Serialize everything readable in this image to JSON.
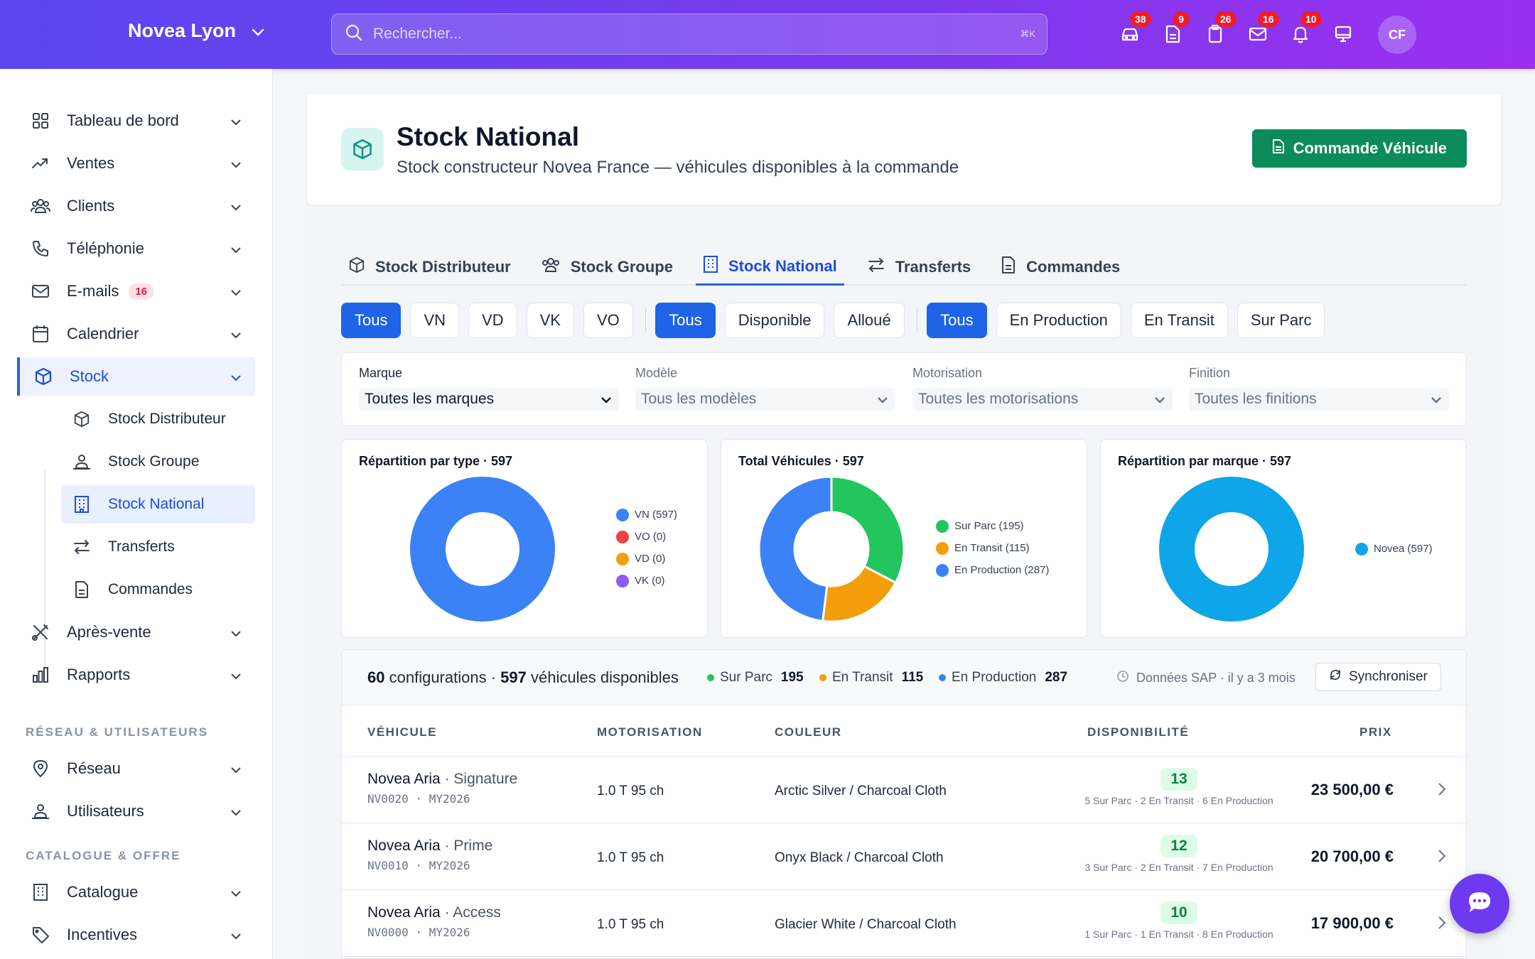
{
  "topbar": {
    "org_name": "Novea Lyon",
    "search_placeholder": "Rechercher...",
    "search_shortcut": "⌘K",
    "notifications": [
      {
        "icon": "car-icon",
        "count": "38"
      },
      {
        "icon": "document-icon",
        "count": "9"
      },
      {
        "icon": "clipboard-icon",
        "count": "26"
      },
      {
        "icon": "mail-icon",
        "count": "16"
      },
      {
        "icon": "bell-icon",
        "count": "10"
      },
      {
        "icon": "monitor-icon",
        "count": ""
      }
    ],
    "avatar_initials": "CF"
  },
  "sidebar": {
    "items": [
      {
        "label": "Tableau de bord",
        "icon": "grid-icon"
      },
      {
        "label": "Ventes",
        "icon": "trending-icon"
      },
      {
        "label": "Clients",
        "icon": "users-icon"
      },
      {
        "label": "Téléphonie",
        "icon": "phone-icon"
      },
      {
        "label": "E-mails",
        "icon": "mail-icon",
        "badge": "16"
      },
      {
        "label": "Calendrier",
        "icon": "calendar-icon"
      },
      {
        "label": "Stock",
        "icon": "box-icon"
      }
    ],
    "stock_sub": [
      {
        "label": "Stock Distributeur"
      },
      {
        "label": "Stock Groupe"
      },
      {
        "label": "Stock National"
      },
      {
        "label": "Transferts"
      },
      {
        "label": "Commandes"
      }
    ],
    "after_items": [
      {
        "label": "Après-vente"
      },
      {
        "label": "Rapports"
      }
    ],
    "section_network": "RÉSEAU & UTILISATEURS",
    "network_items": [
      {
        "label": "Réseau"
      },
      {
        "label": "Utilisateurs"
      }
    ],
    "section_catalog": "CATALOGUE & OFFRE",
    "catalog_items": [
      {
        "label": "Catalogue"
      },
      {
        "label": "Incentives"
      }
    ]
  },
  "header": {
    "title": "Stock National",
    "subtitle": "Stock constructeur Novea France — véhicules disponibles à la commande",
    "action_label": "Commande Véhicule"
  },
  "tabs": [
    {
      "label": "Stock Distributeur"
    },
    {
      "label": "Stock Groupe"
    },
    {
      "label": "Stock National",
      "active": true
    },
    {
      "label": "Transferts"
    },
    {
      "label": "Commandes"
    }
  ],
  "pills": {
    "type": [
      "Tous",
      "VN",
      "VD",
      "VK",
      "VO"
    ],
    "allocation": [
      "Tous",
      "Disponible",
      "Alloué"
    ],
    "status": [
      "Tous",
      "En Production",
      "En Transit",
      "Sur Parc"
    ]
  },
  "filters": [
    {
      "label": "Marque",
      "value": "Toutes les marques"
    },
    {
      "label": "Modèle",
      "value": "Tous les modèles"
    },
    {
      "label": "Motorisation",
      "value": "Toutes les motorisations"
    },
    {
      "label": "Finition",
      "value": "Toutes les finitions"
    }
  ],
  "chart_data": [
    {
      "type": "pie",
      "title": "Répartition par type · 597",
      "categories": [
        "VN (597)",
        "VO (0)",
        "VD (0)",
        "VK (0)"
      ],
      "values": [
        597,
        0,
        0,
        0
      ],
      "colors": [
        "#3b82f6",
        "#ef4444",
        "#f59e0b",
        "#8b5cf6"
      ],
      "legend": "right"
    },
    {
      "type": "pie",
      "title": "Total Véhicules · 597",
      "categories": [
        "Sur Parc (195)",
        "En Transit (115)",
        "En Production (287)"
      ],
      "values": [
        195,
        115,
        287
      ],
      "colors": [
        "#22c55e",
        "#f59e0b",
        "#3b82f6"
      ],
      "legend": "right"
    },
    {
      "type": "pie",
      "title": "Répartition par marque · 597",
      "categories": [
        "Novea (597)"
      ],
      "values": [
        597
      ],
      "colors": [
        "#0ea5e9"
      ],
      "legend": "right"
    }
  ],
  "summary": {
    "configurations": "60",
    "config_label": "configurations ·",
    "vehicles": "597",
    "vehicles_label": "véhicules disponibles",
    "stats": [
      {
        "label": "Sur Parc",
        "value": "195",
        "color": "#22c55e"
      },
      {
        "label": "En Transit",
        "value": "115",
        "color": "#f59e0b"
      },
      {
        "label": "En Production",
        "value": "287",
        "color": "#3b82f6"
      }
    ],
    "sap_label": "Données SAP · il y a 3 mois",
    "sync_label": "Synchroniser"
  },
  "table": {
    "headers": [
      "VÉHICULE",
      "MOTORISATION",
      "COULEUR",
      "DISPONIBILITÉ",
      "PRIX"
    ],
    "rows": [
      {
        "model": "Novea Aria",
        "trim": "· Signature",
        "code": "NV0020  ·  MY2026",
        "engine": "1.0 T 95 ch",
        "color": "Arctic Silver / Charcoal Cloth",
        "qty": "13",
        "detail": "5 Sur Parc · 2 En Transit · 6 En Production",
        "price": "23 500,00 €"
      },
      {
        "model": "Novea Aria",
        "trim": "· Prime",
        "code": "NV0010  ·  MY2026",
        "engine": "1.0 T 95 ch",
        "color": "Onyx Black / Charcoal Cloth",
        "qty": "12",
        "detail": "3 Sur Parc · 2 En Transit · 7 En Production",
        "price": "20 700,00 €"
      },
      {
        "model": "Novea Aria",
        "trim": "· Access",
        "code": "NV0000  ·  MY2026",
        "engine": "1.0 T 95 ch",
        "color": "Glacier White / Charcoal Cloth",
        "qty": "10",
        "detail": "1 Sur Parc · 1 En Transit · 8 En Production",
        "price": "17 900,00 €"
      }
    ]
  }
}
